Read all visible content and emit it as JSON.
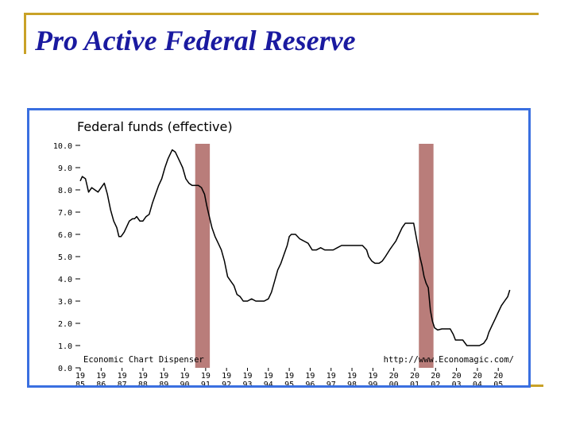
{
  "slide": {
    "title": "Pro Active Federal Reserve"
  },
  "colors": {
    "title": "#1a1aa0",
    "frame": "#c9a227",
    "chart_border": "#3a6fe0",
    "recession": "#b97d7a",
    "line": "#000000"
  },
  "chart_data": {
    "type": "line",
    "title": "Federal funds (effective)",
    "source_left": "Economic Chart Dispenser",
    "source_right": "http://www.Economagic.com/",
    "ylim": [
      0,
      10
    ],
    "xlim": [
      1985,
      2005.6
    ],
    "y_ticks": [
      "10.0",
      "9.0",
      "8.0",
      "7.0",
      "6.0",
      "5.0",
      "4.0",
      "3.0",
      "2.0",
      "1.0",
      "0.0"
    ],
    "x_ticks": [
      {
        "year": 1985,
        "top": "19",
        "bottom": "85"
      },
      {
        "year": 1986,
        "top": "19",
        "bottom": "86"
      },
      {
        "year": 1987,
        "top": "19",
        "bottom": "87"
      },
      {
        "year": 1988,
        "top": "19",
        "bottom": "88"
      },
      {
        "year": 1989,
        "top": "19",
        "bottom": "89"
      },
      {
        "year": 1990,
        "top": "19",
        "bottom": "90"
      },
      {
        "year": 1991,
        "top": "19",
        "bottom": "91"
      },
      {
        "year": 1992,
        "top": "19",
        "bottom": "92"
      },
      {
        "year": 1993,
        "top": "19",
        "bottom": "93"
      },
      {
        "year": 1994,
        "top": "19",
        "bottom": "94"
      },
      {
        "year": 1995,
        "top": "19",
        "bottom": "95"
      },
      {
        "year": 1996,
        "top": "19",
        "bottom": "96"
      },
      {
        "year": 1997,
        "top": "19",
        "bottom": "97"
      },
      {
        "year": 1998,
        "top": "19",
        "bottom": "98"
      },
      {
        "year": 1999,
        "top": "19",
        "bottom": "99"
      },
      {
        "year": 2000,
        "top": "20",
        "bottom": "00"
      },
      {
        "year": 2001,
        "top": "20",
        "bottom": "01"
      },
      {
        "year": 2002,
        "top": "20",
        "bottom": "02"
      },
      {
        "year": 2003,
        "top": "20",
        "bottom": "03"
      },
      {
        "year": 2004,
        "top": "20",
        "bottom": "04"
      },
      {
        "year": 2005,
        "top": "20",
        "bottom": "05"
      }
    ],
    "recessions": [
      {
        "start": 1990.5,
        "end": 1991.2
      },
      {
        "start": 2001.2,
        "end": 2001.9
      }
    ],
    "series": [
      {
        "name": "Federal funds (effective)",
        "x": [
          1985.0,
          1985.1,
          1985.25,
          1985.4,
          1985.55,
          1985.7,
          1985.85,
          1986.0,
          1986.15,
          1986.3,
          1986.45,
          1986.6,
          1986.75,
          1986.85,
          1986.95,
          1987.1,
          1987.25,
          1987.35,
          1987.5,
          1987.6,
          1987.7,
          1987.85,
          1988.0,
          1988.15,
          1988.3,
          1988.45,
          1988.6,
          1988.75,
          1988.9,
          1989.05,
          1989.2,
          1989.4,
          1989.55,
          1989.75,
          1989.9,
          1990.05,
          1990.2,
          1990.35,
          1990.5,
          1990.65,
          1990.8,
          1990.95,
          1991.05,
          1991.15,
          1991.3,
          1991.45,
          1991.6,
          1991.75,
          1991.9,
          1992.05,
          1992.2,
          1992.35,
          1992.5,
          1992.65,
          1992.8,
          1993.0,
          1993.2,
          1993.4,
          1993.6,
          1993.8,
          1994.0,
          1994.15,
          1994.3,
          1994.45,
          1994.6,
          1994.75,
          1994.9,
          1995.0,
          1995.1,
          1995.3,
          1995.5,
          1995.7,
          1995.9,
          1996.1,
          1996.3,
          1996.5,
          1996.7,
          1996.9,
          1997.1,
          1997.3,
          1997.5,
          1997.7,
          1997.9,
          1998.1,
          1998.3,
          1998.5,
          1998.7,
          1998.8,
          1998.95,
          1999.1,
          1999.3,
          1999.45,
          1999.6,
          1999.8,
          1999.95,
          2000.1,
          2000.25,
          2000.4,
          2000.55,
          2000.75,
          2000.95,
          2001.05,
          2001.15,
          2001.25,
          2001.35,
          2001.45,
          2001.55,
          2001.65,
          2001.75,
          2001.85,
          2001.95,
          2002.1,
          2002.3,
          2002.5,
          2002.7,
          2002.85,
          2002.95,
          2003.1,
          2003.3,
          2003.5,
          2003.7,
          2003.9,
          2004.1,
          2004.3,
          2004.45,
          2004.55,
          2004.7,
          2004.85,
          2005.0,
          2005.15,
          2005.3,
          2005.45,
          2005.55
        ],
        "values": [
          8.4,
          8.6,
          8.5,
          7.9,
          8.1,
          8.0,
          7.9,
          8.1,
          8.3,
          7.8,
          7.1,
          6.6,
          6.3,
          5.9,
          5.9,
          6.1,
          6.4,
          6.6,
          6.7,
          6.7,
          6.8,
          6.6,
          6.6,
          6.8,
          6.9,
          7.4,
          7.8,
          8.2,
          8.5,
          9.0,
          9.4,
          9.8,
          9.7,
          9.3,
          9.0,
          8.5,
          8.3,
          8.2,
          8.2,
          8.2,
          8.1,
          7.8,
          7.3,
          6.9,
          6.3,
          5.9,
          5.6,
          5.3,
          4.8,
          4.1,
          3.9,
          3.7,
          3.3,
          3.2,
          3.0,
          3.0,
          3.1,
          3.0,
          3.0,
          3.0,
          3.1,
          3.4,
          3.9,
          4.4,
          4.7,
          5.1,
          5.5,
          5.9,
          6.0,
          6.0,
          5.8,
          5.7,
          5.6,
          5.3,
          5.3,
          5.4,
          5.3,
          5.3,
          5.3,
          5.4,
          5.5,
          5.5,
          5.5,
          5.5,
          5.5,
          5.5,
          5.3,
          5.0,
          4.8,
          4.7,
          4.7,
          4.8,
          5.0,
          5.3,
          5.5,
          5.7,
          6.0,
          6.3,
          6.5,
          6.5,
          6.5,
          6.0,
          5.5,
          5.0,
          4.6,
          4.1,
          3.8,
          3.6,
          2.6,
          2.1,
          1.8,
          1.7,
          1.75,
          1.75,
          1.75,
          1.5,
          1.25,
          1.25,
          1.25,
          1.0,
          1.0,
          1.0,
          1.0,
          1.1,
          1.3,
          1.6,
          1.9,
          2.2,
          2.5,
          2.8,
          3.0,
          3.2,
          3.5
        ]
      }
    ]
  }
}
